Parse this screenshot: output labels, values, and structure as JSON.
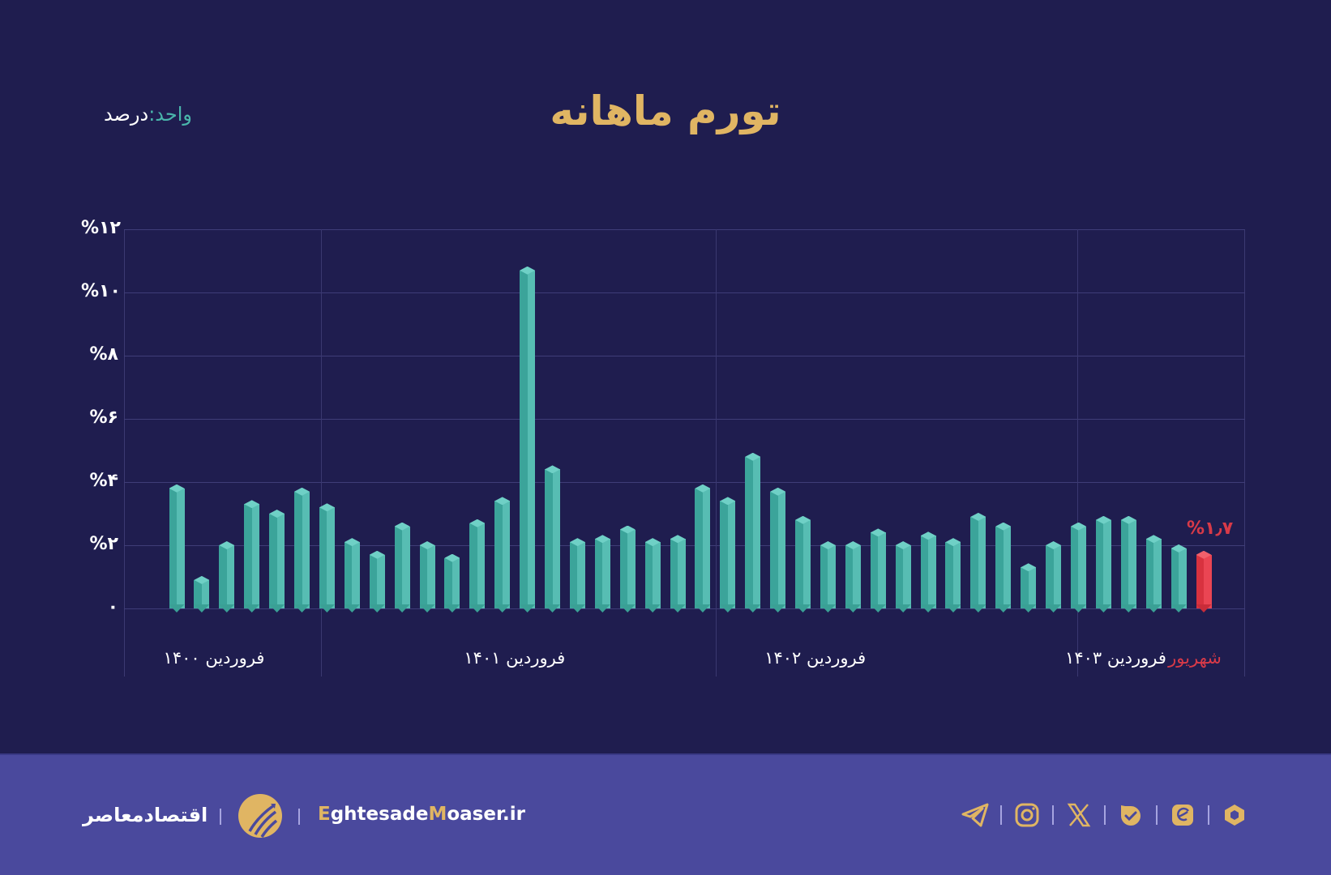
{
  "header": {
    "title": "تورم ماهانه",
    "unit_key": "واحد:",
    "unit_value": "درصد"
  },
  "colors": {
    "background": "#1f1d4f",
    "title": "#e0b563",
    "bar": "#4ab5ab",
    "highlight": "#e23e4c",
    "footer": "#4a499d",
    "gridline": "#3f3d78"
  },
  "chart_data": {
    "type": "bar",
    "title": "تورم ماهانه",
    "unit": "درصد",
    "xlabel": "",
    "ylabel": "",
    "ylim": [
      0,
      12
    ],
    "yticks": [
      {
        "value": 0,
        "label": "۰"
      },
      {
        "value": 2,
        "label": "%۲"
      },
      {
        "value": 4,
        "label": "%۴"
      },
      {
        "value": 6,
        "label": "%۶"
      },
      {
        "value": 8,
        "label": "%۸"
      },
      {
        "value": 10,
        "label": "%۱۰"
      },
      {
        "value": 12,
        "label": "%۱۲"
      }
    ],
    "grid": true,
    "x_tick_labels": [
      {
        "index": 1,
        "label": "فروردین ۱۴۰۰"
      },
      {
        "index": 13,
        "label": "فروردین ۱۴۰۱"
      },
      {
        "index": 25,
        "label": "فروردین ۱۴۰۲"
      },
      {
        "index": 37,
        "label": "فروردین ۱۴۰۳"
      },
      {
        "index": 42,
        "label": "شهریور",
        "highlight": true
      }
    ],
    "values": [
      3.8,
      0.9,
      2.0,
      3.3,
      3.0,
      3.7,
      3.2,
      2.1,
      1.7,
      2.6,
      2.0,
      1.6,
      2.7,
      3.4,
      10.7,
      4.4,
      2.1,
      2.2,
      2.5,
      2.1,
      2.2,
      3.8,
      3.4,
      4.8,
      3.7,
      2.8,
      2.0,
      2.0,
      2.4,
      2.0,
      2.3,
      2.1,
      2.9,
      2.6,
      1.3,
      2.0,
      2.6,
      2.8,
      2.8,
      2.2,
      1.9,
      1.7
    ],
    "highlight_index": 41,
    "annotation": {
      "bar_index": 41,
      "text": "%۱٫۷",
      "value": 1.7
    }
  },
  "footer": {
    "brand_fa": "اقتصادمعاصر",
    "site_parts": [
      {
        "text": "E",
        "accent": true
      },
      {
        "text": "ghtesade",
        "accent": false
      },
      {
        "text": "M",
        "accent": true
      },
      {
        "text": "oaser.ir",
        "accent": false
      }
    ],
    "social_icons": [
      "telegram-icon",
      "instagram-icon",
      "x-icon",
      "bale-icon",
      "eitaa-icon",
      "rubika-icon"
    ]
  }
}
